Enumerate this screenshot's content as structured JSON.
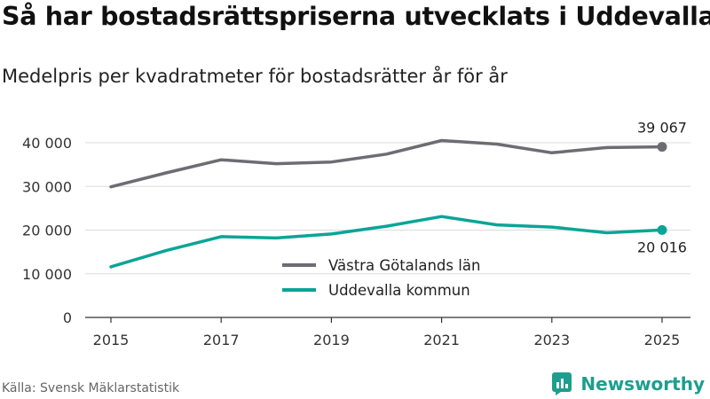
{
  "title": "Så har bostadsrättspriserna utvecklats i Uddevalla",
  "subtitle": "Medelpris per kvadratmeter för bostadsrätter år för år",
  "source": "Källa: Svensk Mäklarstatistik",
  "brand": "Newsworthy",
  "colors": {
    "gray": "#6e6c73",
    "teal": "#0aa597",
    "grid": "#dcdcdc",
    "axis": "#333333",
    "brand": "#1e9e8e"
  },
  "chart_data": {
    "type": "line",
    "title": "Så har bostadsrättspriserna utvecklats i Uddevalla",
    "subtitle": "Medelpris per kvadratmeter för bostadsrätter år för år",
    "xlabel": "",
    "ylabel": "",
    "x": [
      2015,
      2016,
      2017,
      2018,
      2019,
      2020,
      2021,
      2022,
      2023,
      2024,
      2025
    ],
    "xticks": [
      2015,
      2017,
      2019,
      2021,
      2023,
      2025
    ],
    "xlim": [
      2015,
      2025
    ],
    "ylim": [
      0,
      40000
    ],
    "yticks": [
      0,
      10000,
      20000,
      30000,
      40000
    ],
    "ytick_labels": [
      "0",
      "10 000",
      "20 000",
      "30 000",
      "40 000"
    ],
    "grid": true,
    "legend_position": "center-bottom",
    "series": [
      {
        "name": "Västra Götalands län",
        "color": "#6e6c73",
        "values": [
          29900,
          33100,
          36100,
          35200,
          35600,
          37400,
          40500,
          39700,
          37700,
          38900,
          39067
        ],
        "end_label": "39 067"
      },
      {
        "name": "Uddevalla kommun",
        "color": "#0aa597",
        "values": [
          11600,
          15300,
          18500,
          18200,
          19100,
          20900,
          23100,
          21200,
          20700,
          19400,
          20016
        ],
        "end_label": "20 016"
      }
    ]
  }
}
